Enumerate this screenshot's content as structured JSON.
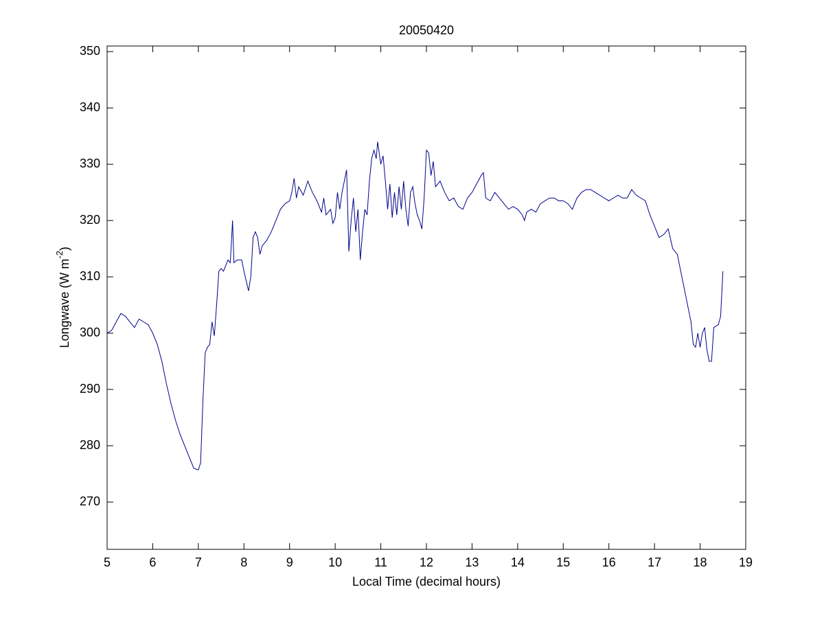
{
  "chart_data": {
    "type": "line",
    "title": "20050420",
    "xlabel": "Local Time (decimal hours)",
    "ylabel": "Longwave (W m",
    "ylabel_sup": "-2",
    "ylabel_end": ")",
    "xlim": [
      5,
      19
    ],
    "xticks": [
      5,
      6,
      7,
      8,
      9,
      10,
      11,
      12,
      13,
      14,
      15,
      16,
      17,
      18,
      19
    ],
    "ylim": [
      261.6,
      351
    ],
    "yticks": [
      270,
      280,
      290,
      300,
      310,
      320,
      330,
      340,
      350
    ],
    "grid": false,
    "x": [
      5.0,
      5.1,
      5.2,
      5.3,
      5.4,
      5.5,
      5.6,
      5.7,
      5.8,
      5.9,
      6.0,
      6.1,
      6.2,
      6.3,
      6.4,
      6.5,
      6.6,
      6.7,
      6.8,
      6.9,
      7.0,
      7.05,
      7.1,
      7.15,
      7.2,
      7.25,
      7.3,
      7.35,
      7.4,
      7.45,
      7.5,
      7.55,
      7.6,
      7.65,
      7.7,
      7.75,
      7.78,
      7.85,
      7.95,
      8.0,
      8.1,
      8.15,
      8.2,
      8.25,
      8.3,
      8.35,
      8.4,
      8.5,
      8.6,
      8.7,
      8.8,
      8.9,
      9.0,
      9.05,
      9.1,
      9.15,
      9.2,
      9.3,
      9.4,
      9.5,
      9.6,
      9.7,
      9.75,
      9.8,
      9.9,
      9.95,
      10.0,
      10.05,
      10.1,
      10.15,
      10.2,
      10.25,
      10.3,
      10.35,
      10.4,
      10.45,
      10.5,
      10.55,
      10.6,
      10.65,
      10.7,
      10.75,
      10.8,
      10.85,
      10.9,
      10.93,
      11.0,
      11.05,
      11.1,
      11.15,
      11.2,
      11.25,
      11.3,
      11.35,
      11.4,
      11.45,
      11.5,
      11.55,
      11.6,
      11.65,
      11.7,
      11.75,
      11.8,
      11.85,
      11.9,
      11.95,
      12.0,
      12.05,
      12.1,
      12.15,
      12.2,
      12.3,
      12.4,
      12.5,
      12.6,
      12.7,
      12.8,
      12.9,
      13.0,
      13.1,
      13.2,
      13.25,
      13.3,
      13.4,
      13.5,
      13.6,
      13.7,
      13.8,
      13.9,
      14.0,
      14.1,
      14.15,
      14.2,
      14.3,
      14.4,
      14.5,
      14.6,
      14.7,
      14.8,
      14.9,
      15.0,
      15.1,
      15.2,
      15.3,
      15.4,
      15.5,
      15.6,
      15.7,
      15.8,
      15.9,
      16.0,
      16.1,
      16.2,
      16.3,
      16.4,
      16.5,
      16.6,
      16.7,
      16.8,
      16.9,
      17.0,
      17.1,
      17.2,
      17.3,
      17.4,
      17.5,
      17.6,
      17.7,
      17.8,
      17.85,
      17.9,
      17.95,
      18.0,
      18.05,
      18.1,
      18.15,
      18.2,
      18.25,
      18.3,
      18.4,
      18.45,
      18.5
    ],
    "series": [
      {
        "color": "#00008b",
        "values": [
          300,
          300.5,
          302,
          303.5,
          303,
          302,
          301,
          302.5,
          302,
          301.5,
          300,
          298,
          295,
          291,
          287.5,
          284.5,
          282,
          280,
          278,
          276,
          275.7,
          277,
          288,
          296.5,
          297.5,
          298,
          302,
          299.5,
          305,
          311,
          311.5,
          311,
          312,
          313,
          312.5,
          320,
          312.5,
          313,
          313,
          311,
          307.5,
          310,
          317,
          318,
          317,
          314,
          315.5,
          316.5,
          318,
          320,
          322,
          323,
          323.5,
          325,
          327.5,
          324,
          326,
          324.5,
          327,
          325,
          323.5,
          321.5,
          324,
          321,
          322,
          319.5,
          320.5,
          325,
          322,
          325,
          327,
          329,
          314.5,
          320,
          324,
          318,
          322,
          313,
          318,
          322,
          321,
          327,
          331,
          332.5,
          331,
          334,
          330,
          331.5,
          327,
          322,
          326.5,
          320.5,
          325,
          321,
          326,
          322,
          327,
          322,
          319,
          325,
          326,
          323,
          321,
          320,
          318.5,
          324,
          332.5,
          332,
          328,
          330.5,
          326,
          327,
          325,
          323.5,
          324,
          322.5,
          322,
          324,
          325,
          326.5,
          328,
          328.5,
          324,
          323.5,
          325,
          324,
          323,
          322,
          322.5,
          322,
          321,
          320,
          321.5,
          322,
          321.5,
          323,
          323.5,
          324,
          324,
          323.5,
          323.5,
          323,
          322,
          324,
          325,
          325.5,
          325.5,
          325,
          324.5,
          324,
          323.5,
          324,
          324.5,
          324,
          324,
          325.5,
          324.5,
          324,
          323.5,
          321,
          319,
          317,
          317.5,
          318.5,
          315,
          314,
          310,
          306,
          302,
          298,
          297.5,
          300,
          297.5,
          300,
          301,
          297,
          295,
          295,
          301,
          301.5,
          303,
          311
        ]
      }
    ]
  }
}
